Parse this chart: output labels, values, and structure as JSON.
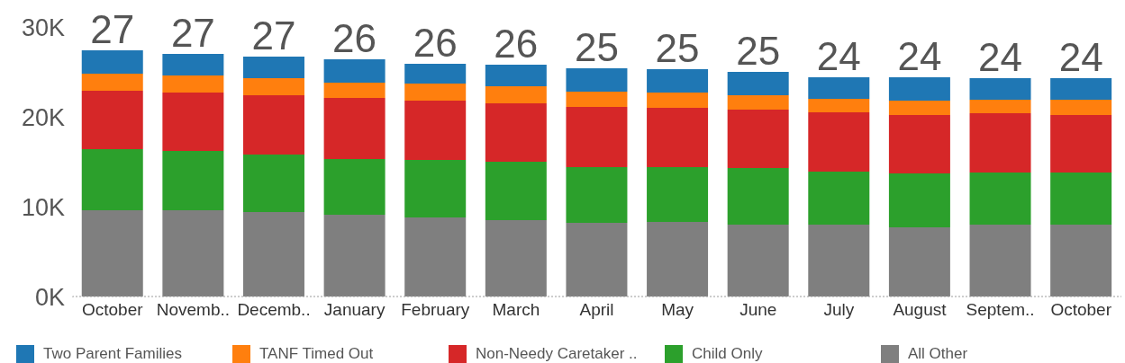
{
  "chart_data": {
    "type": "bar",
    "stacked": true,
    "categories": [
      "October",
      "Novemb..",
      "Decemb..",
      "January",
      "February",
      "March",
      "April",
      "May",
      "June",
      "July",
      "August",
      "Septem..",
      "October"
    ],
    "series": [
      {
        "name": "All Other",
        "color": "#7f7f7f",
        "values": [
          9.6,
          9.6,
          9.4,
          9.1,
          8.8,
          8.5,
          8.2,
          8.3,
          8.0,
          8.0,
          7.7,
          8.0,
          8.0
        ]
      },
      {
        "name": "Child Only",
        "color": "#2ca02c",
        "values": [
          6.8,
          6.6,
          6.4,
          6.2,
          6.4,
          6.5,
          6.2,
          6.1,
          6.3,
          5.9,
          6.0,
          5.8,
          5.8
        ]
      },
      {
        "name": "Non-Needy Caretaker ..",
        "color": "#d62728",
        "values": [
          6.5,
          6.5,
          6.6,
          6.8,
          6.6,
          6.5,
          6.7,
          6.6,
          6.5,
          6.6,
          6.5,
          6.6,
          6.4
        ]
      },
      {
        "name": "TANF Timed Out",
        "color": "#ff7f0e",
        "values": [
          1.9,
          1.9,
          1.9,
          1.7,
          1.9,
          1.9,
          1.7,
          1.7,
          1.6,
          1.5,
          1.6,
          1.5,
          1.7
        ]
      },
      {
        "name": "Two Parent Families",
        "color": "#1f77b4",
        "values": [
          2.6,
          2.4,
          2.4,
          2.6,
          2.2,
          2.4,
          2.6,
          2.6,
          2.6,
          2.4,
          2.6,
          2.4,
          2.4
        ]
      }
    ],
    "totals": [
      "27",
      "27",
      "27",
      "26",
      "26",
      "26",
      "25",
      "25",
      "25",
      "24",
      "24",
      "24",
      "24"
    ],
    "ylim": [
      0,
      30
    ],
    "yticks": [
      {
        "value": 0,
        "label": "0K"
      },
      {
        "value": 10,
        "label": "10K"
      },
      {
        "value": 20,
        "label": "20K"
      },
      {
        "value": 30,
        "label": "30K"
      }
    ],
    "grid": false,
    "legend": "bottom"
  }
}
